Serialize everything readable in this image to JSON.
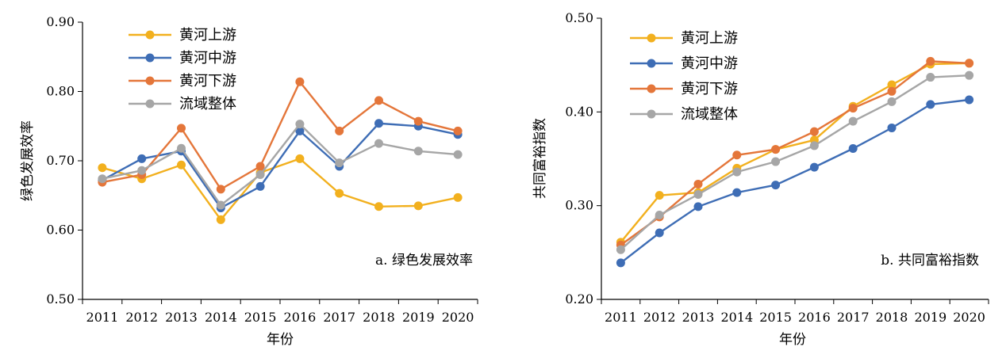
{
  "chart_data": [
    {
      "type": "line",
      "x": [
        "2011",
        "2012",
        "2013",
        "2014",
        "2015",
        "2016",
        "2017",
        "2018",
        "2019",
        "2020"
      ],
      "ylabel": "绿色发展效率",
      "xlabel": "年份",
      "ylim": [
        0.5,
        0.9
      ],
      "yticks": [
        "0.50",
        "0.60",
        "0.70",
        "0.80",
        "0.90"
      ],
      "annotation": "a. 绿色发展效率",
      "legend_position": "top-left",
      "series": [
        {
          "name": "黄河上游",
          "color": "#F2B01E",
          "values": [
            0.69,
            0.674,
            0.694,
            0.615,
            0.683,
            0.703,
            0.653,
            0.634,
            0.635,
            0.647
          ]
        },
        {
          "name": "黄河中游",
          "color": "#3E6DB5",
          "values": [
            0.672,
            0.703,
            0.714,
            0.632,
            0.663,
            0.743,
            0.692,
            0.754,
            0.75,
            0.738
          ]
        },
        {
          "name": "黄河下游",
          "color": "#E4763A",
          "values": [
            0.669,
            0.68,
            0.747,
            0.659,
            0.692,
            0.814,
            0.743,
            0.787,
            0.757,
            0.743
          ]
        },
        {
          "name": "流域整体",
          "color": "#A6A6A6",
          "values": [
            0.674,
            0.686,
            0.718,
            0.636,
            0.68,
            0.753,
            0.697,
            0.725,
            0.714,
            0.709
          ]
        }
      ]
    },
    {
      "type": "line",
      "x": [
        "2011",
        "2012",
        "2013",
        "2014",
        "2015",
        "2016",
        "2017",
        "2018",
        "2019",
        "2020"
      ],
      "ylabel": "共同富裕指数",
      "xlabel": "年份",
      "ylim": [
        0.2,
        0.5
      ],
      "yticks": [
        "0.20",
        "0.30",
        "0.40",
        "0.50"
      ],
      "annotation": "b. 共同富裕指数",
      "legend_position": "top-left",
      "series": [
        {
          "name": "黄河上游",
          "color": "#F2B01E",
          "values": [
            0.261,
            0.311,
            0.314,
            0.34,
            0.36,
            0.37,
            0.406,
            0.429,
            0.451,
            0.452
          ]
        },
        {
          "name": "黄河中游",
          "color": "#3E6DB5",
          "values": [
            0.239,
            0.271,
            0.299,
            0.314,
            0.322,
            0.341,
            0.361,
            0.383,
            0.408,
            0.413
          ]
        },
        {
          "name": "黄河下游",
          "color": "#E4763A",
          "values": [
            0.258,
            0.288,
            0.323,
            0.354,
            0.36,
            0.379,
            0.404,
            0.422,
            0.454,
            0.452
          ]
        },
        {
          "name": "流域整体",
          "color": "#A6A6A6",
          "values": [
            0.253,
            0.29,
            0.312,
            0.336,
            0.347,
            0.364,
            0.39,
            0.411,
            0.437,
            0.439
          ]
        }
      ]
    }
  ]
}
